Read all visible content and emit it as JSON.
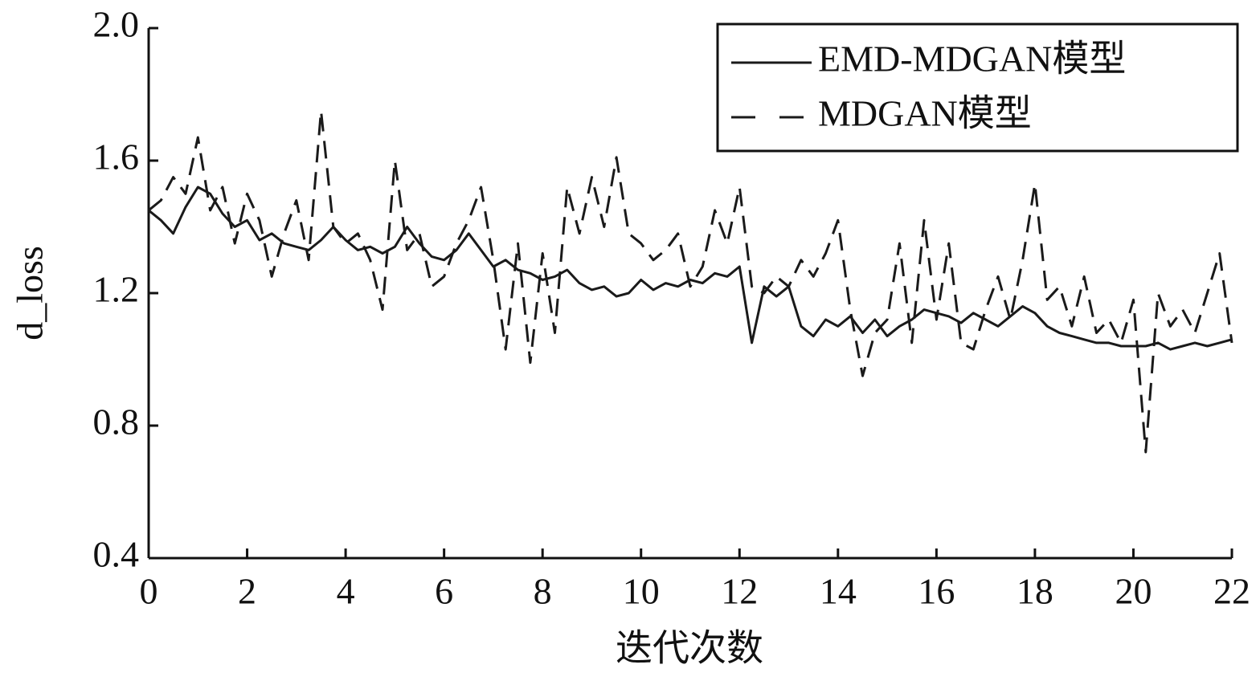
{
  "chart_data": {
    "type": "line",
    "xlabel": "迭代次数",
    "ylabel": "d_loss",
    "x": [
      0,
      0.25,
      0.5,
      0.75,
      1,
      1.25,
      1.5,
      1.75,
      2,
      2.25,
      2.5,
      2.75,
      3,
      3.25,
      3.5,
      3.75,
      4,
      4.25,
      4.5,
      4.75,
      5,
      5.25,
      5.5,
      5.75,
      6,
      6.25,
      6.5,
      6.75,
      7,
      7.25,
      7.5,
      7.75,
      8,
      8.25,
      8.5,
      8.75,
      9,
      9.25,
      9.5,
      9.75,
      10,
      10.25,
      10.5,
      10.75,
      11,
      11.25,
      11.5,
      11.75,
      12,
      12.25,
      12.5,
      12.75,
      13,
      13.25,
      13.5,
      13.75,
      14,
      14.25,
      14.5,
      14.75,
      15,
      15.25,
      15.5,
      15.75,
      16,
      16.25,
      16.5,
      16.75,
      17,
      17.25,
      17.5,
      17.75,
      18,
      18.25,
      18.5,
      18.75,
      19,
      19.25,
      19.5,
      19.75,
      20,
      20.25,
      20.5,
      20.75,
      21,
      21.25,
      21.5,
      21.75,
      22
    ],
    "series": [
      {
        "name": "EMD-MDGAN模型",
        "color": "#1a1a1a",
        "linestyle": "solid",
        "values": [
          1.45,
          1.42,
          1.38,
          1.46,
          1.52,
          1.5,
          1.44,
          1.4,
          1.42,
          1.36,
          1.38,
          1.35,
          1.34,
          1.33,
          1.36,
          1.4,
          1.36,
          1.33,
          1.34,
          1.32,
          1.34,
          1.4,
          1.35,
          1.31,
          1.3,
          1.33,
          1.38,
          1.33,
          1.28,
          1.3,
          1.27,
          1.26,
          1.24,
          1.25,
          1.27,
          1.23,
          1.21,
          1.22,
          1.19,
          1.2,
          1.24,
          1.21,
          1.23,
          1.22,
          1.24,
          1.23,
          1.26,
          1.25,
          1.28,
          1.05,
          1.22,
          1.19,
          1.22,
          1.1,
          1.07,
          1.12,
          1.1,
          1.13,
          1.08,
          1.12,
          1.07,
          1.1,
          1.12,
          1.15,
          1.14,
          1.13,
          1.11,
          1.14,
          1.12,
          1.1,
          1.13,
          1.16,
          1.14,
          1.1,
          1.08,
          1.07,
          1.06,
          1.05,
          1.05,
          1.04,
          1.04,
          1.04,
          1.05,
          1.03,
          1.04,
          1.05,
          1.04,
          1.05,
          1.06
        ]
      },
      {
        "name": "MDGAN模型",
        "color": "#1a1a1a",
        "linestyle": "dashed",
        "values": [
          1.45,
          1.48,
          1.55,
          1.5,
          1.67,
          1.45,
          1.52,
          1.35,
          1.5,
          1.42,
          1.25,
          1.38,
          1.48,
          1.3,
          1.75,
          1.4,
          1.35,
          1.38,
          1.3,
          1.15,
          1.6,
          1.33,
          1.38,
          1.22,
          1.25,
          1.35,
          1.42,
          1.52,
          1.3,
          1.03,
          1.35,
          0.99,
          1.32,
          1.08,
          1.52,
          1.38,
          1.55,
          1.4,
          1.61,
          1.38,
          1.35,
          1.3,
          1.33,
          1.38,
          1.22,
          1.28,
          1.45,
          1.35,
          1.52,
          1.22,
          1.2,
          1.25,
          1.22,
          1.3,
          1.25,
          1.32,
          1.42,
          1.15,
          0.95,
          1.08,
          1.12,
          1.35,
          1.05,
          1.42,
          1.12,
          1.35,
          1.05,
          1.03,
          1.15,
          1.25,
          1.12,
          1.3,
          1.53,
          1.18,
          1.22,
          1.1,
          1.25,
          1.08,
          1.12,
          1.05,
          1.18,
          0.72,
          1.2,
          1.1,
          1.15,
          1.08,
          1.2,
          1.32,
          1.05
        ]
      }
    ],
    "xlim": [
      0,
      22
    ],
    "xticks": [
      0,
      2,
      4,
      6,
      8,
      10,
      12,
      14,
      16,
      18,
      20,
      22
    ],
    "ylim": [
      0.4,
      2.0
    ],
    "yticks": [
      0.4,
      0.8,
      1.2,
      1.6,
      {
        "value": 2,
        "label": "2.0"
      }
    ],
    "grid": false,
    "legend": "upper right"
  }
}
